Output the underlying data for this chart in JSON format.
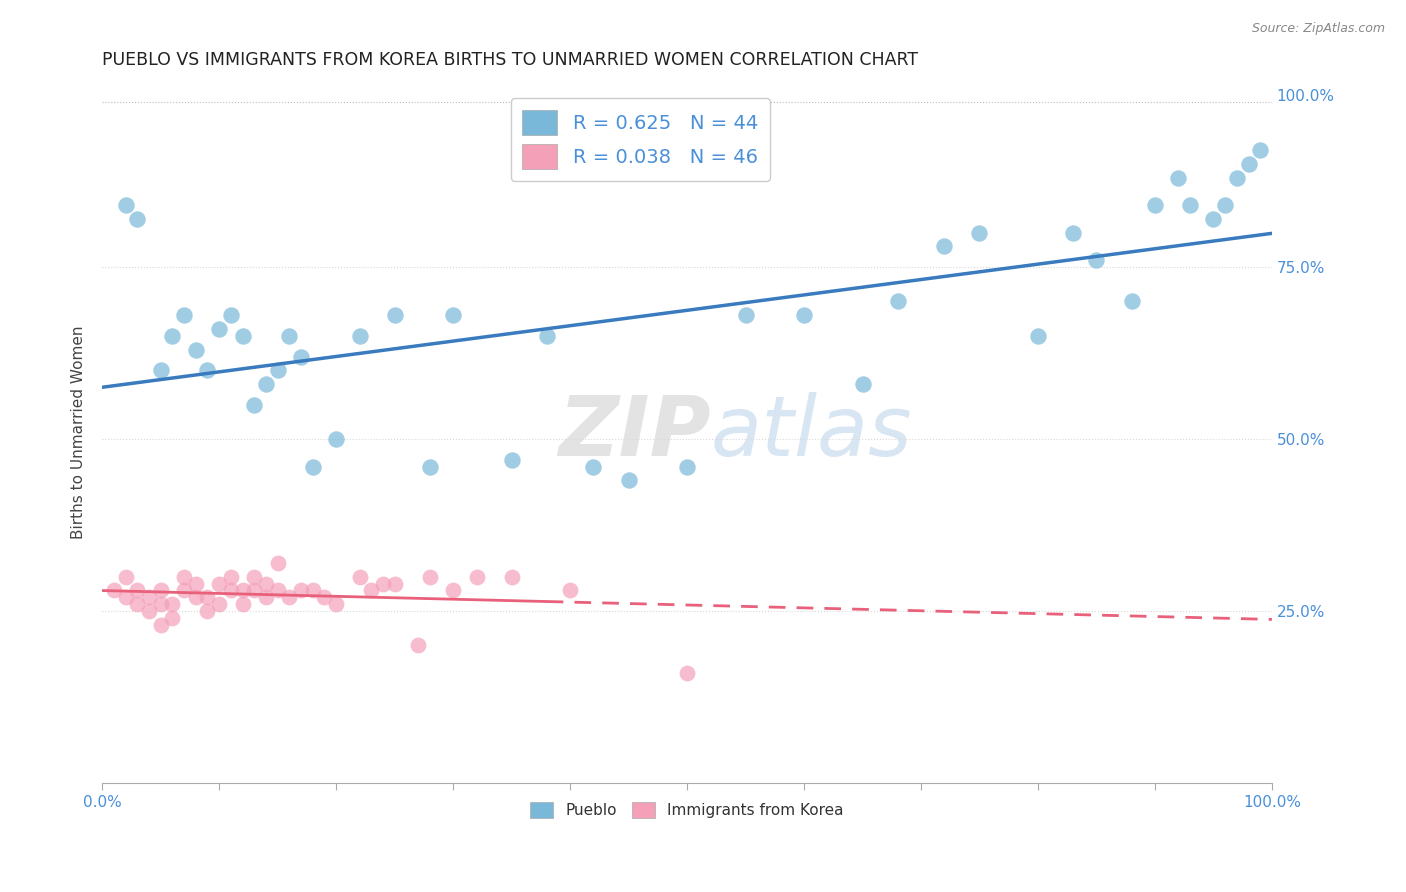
{
  "title": "PUEBLO VS IMMIGRANTS FROM KOREA BIRTHS TO UNMARRIED WOMEN CORRELATION CHART",
  "source": "Source: ZipAtlas.com",
  "ylabel": "Births to Unmarried Women",
  "pueblo_color": "#7ab8d9",
  "korea_color": "#f4a0b8",
  "pueblo_line_color": "#3a7bbf",
  "korea_line_color": "#e8607a",
  "watermark_zip": "ZIP",
  "watermark_atlas": "atlas",
  "background_color": "#ffffff",
  "grid_color": "#d8d8d8",
  "tick_color": "#4a90d9",
  "pueblo_x": [
    0.02,
    0.03,
    0.05,
    0.06,
    0.07,
    0.08,
    0.09,
    0.1,
    0.11,
    0.12,
    0.13,
    0.14,
    0.15,
    0.16,
    0.17,
    0.18,
    0.2,
    0.22,
    0.25,
    0.28,
    0.3,
    0.35,
    0.38,
    0.42,
    0.45,
    0.5,
    0.55,
    0.6,
    0.65,
    0.68,
    0.72,
    0.75,
    0.8,
    0.83,
    0.85,
    0.88,
    0.9,
    0.92,
    0.93,
    0.95,
    0.96,
    0.97,
    0.98,
    0.99
  ],
  "pueblo_y": [
    0.84,
    0.82,
    0.6,
    0.65,
    0.68,
    0.63,
    0.6,
    0.66,
    0.68,
    0.65,
    0.55,
    0.58,
    0.6,
    0.65,
    0.62,
    0.46,
    0.5,
    0.65,
    0.68,
    0.46,
    0.68,
    0.47,
    0.65,
    0.46,
    0.44,
    0.46,
    0.68,
    0.68,
    0.58,
    0.7,
    0.78,
    0.8,
    0.65,
    0.8,
    0.76,
    0.7,
    0.84,
    0.88,
    0.84,
    0.82,
    0.84,
    0.88,
    0.9,
    0.92
  ],
  "korea_x": [
    0.01,
    0.02,
    0.02,
    0.03,
    0.03,
    0.04,
    0.04,
    0.05,
    0.05,
    0.05,
    0.06,
    0.06,
    0.07,
    0.07,
    0.08,
    0.08,
    0.09,
    0.09,
    0.1,
    0.1,
    0.11,
    0.11,
    0.12,
    0.12,
    0.13,
    0.13,
    0.14,
    0.14,
    0.15,
    0.15,
    0.16,
    0.17,
    0.18,
    0.19,
    0.2,
    0.22,
    0.23,
    0.24,
    0.25,
    0.27,
    0.28,
    0.3,
    0.32,
    0.35,
    0.4,
    0.5
  ],
  "korea_y": [
    0.28,
    0.3,
    0.27,
    0.26,
    0.28,
    0.25,
    0.27,
    0.23,
    0.26,
    0.28,
    0.24,
    0.26,
    0.28,
    0.3,
    0.27,
    0.29,
    0.25,
    0.27,
    0.26,
    0.29,
    0.28,
    0.3,
    0.26,
    0.28,
    0.28,
    0.3,
    0.29,
    0.27,
    0.28,
    0.32,
    0.27,
    0.28,
    0.28,
    0.27,
    0.26,
    0.3,
    0.28,
    0.29,
    0.29,
    0.2,
    0.3,
    0.28,
    0.3,
    0.3,
    0.28,
    0.16
  ],
  "pueblo_R": 0.625,
  "pueblo_N": 44,
  "korea_R": 0.038,
  "korea_N": 46,
  "xlim": [
    0,
    1
  ],
  "ylim": [
    0,
    1.02
  ],
  "yticks": [
    0.25,
    0.5,
    0.75,
    1.0
  ],
  "ytick_labels": [
    "25.0%",
    "50.0%",
    "75.0%",
    "100.0%"
  ],
  "top_line_y": 0.99
}
